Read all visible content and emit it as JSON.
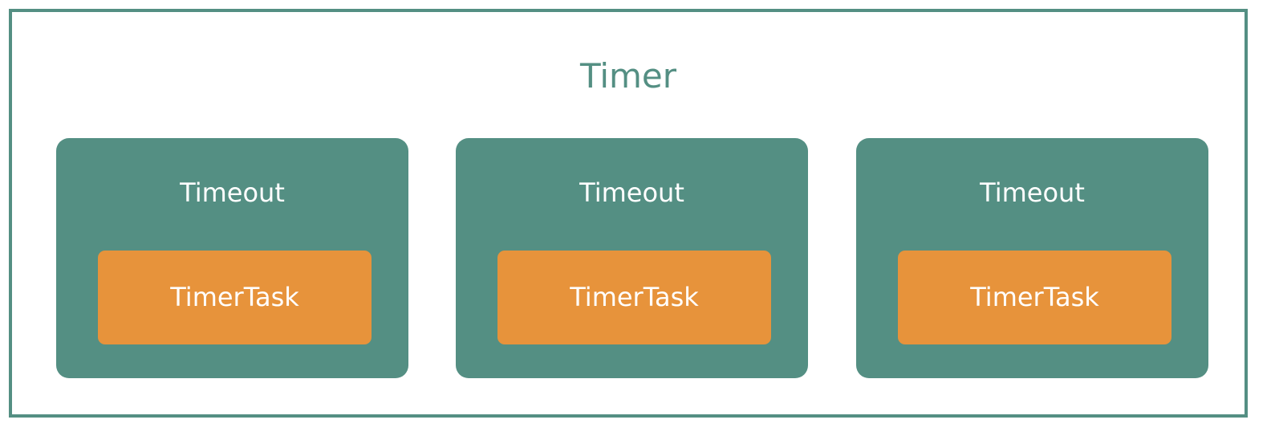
{
  "timer": {
    "title": "Timer"
  },
  "timeouts": [
    {
      "label": "Timeout",
      "task": {
        "label": "TimerTask"
      }
    },
    {
      "label": "Timeout",
      "task": {
        "label": "TimerTask"
      }
    },
    {
      "label": "Timeout",
      "task": {
        "label": "TimerTask"
      }
    }
  ],
  "colors": {
    "primary": "#548f83",
    "task": "#e7933b",
    "background": "#ffffff"
  }
}
